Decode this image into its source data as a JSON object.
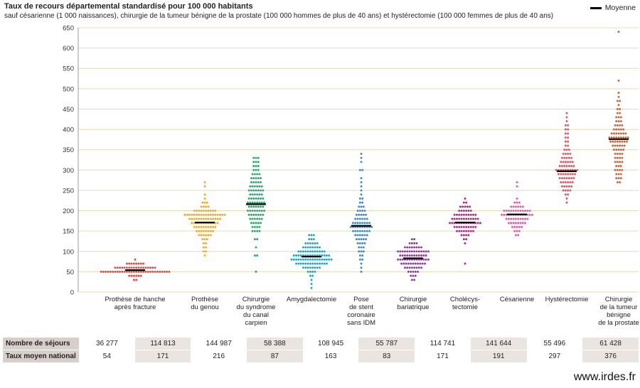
{
  "header": {
    "title": "Taux de recours départemental standardisé pour 100 000 habitants",
    "subtitle": "sauf césarienne (1 000 naissances), chirurgie de la tumeur bénigne de la prostate (100 000 hommes de plus de 40 ans) et hystérectomie (100 000 femmes de plus de 40 ans)"
  },
  "legend": {
    "mean_label": "Moyenne"
  },
  "footer": {
    "source": "www.irdes.fr"
  },
  "chart_data": {
    "type": "scatter",
    "title": "Taux de recours départemental standardisé pour 100 000 habitants",
    "ylim": [
      0,
      650
    ],
    "yticks": [
      0,
      50,
      100,
      150,
      200,
      250,
      300,
      350,
      400,
      450,
      500,
      550,
      600,
      650
    ],
    "grid": true,
    "legend_position": "top-right",
    "categories": [
      {
        "label": [
          "Prothèse de hanche",
          "après fracture"
        ],
        "color": "#e8463f",
        "mean": 54,
        "bins": [
          [
            30,
            2
          ],
          [
            40,
            6
          ],
          [
            50,
            30
          ],
          [
            60,
            18
          ],
          [
            70,
            8
          ],
          [
            80,
            1
          ]
        ]
      },
      {
        "label": [
          "Prothèse",
          "du genou"
        ],
        "color": "#f6a623",
        "mean": 171,
        "bins": [
          [
            90,
            1
          ],
          [
            100,
            2
          ],
          [
            110,
            2
          ],
          [
            120,
            2
          ],
          [
            130,
            3
          ],
          [
            140,
            6
          ],
          [
            150,
            8
          ],
          [
            160,
            10
          ],
          [
            170,
            12
          ],
          [
            180,
            14
          ],
          [
            190,
            18
          ],
          [
            200,
            10
          ],
          [
            210,
            4
          ],
          [
            220,
            3
          ],
          [
            230,
            1
          ],
          [
            240,
            1
          ],
          [
            260,
            1
          ],
          [
            270,
            1
          ]
        ]
      },
      {
        "label": [
          "Chirurgie",
          "du syndrome",
          "du canal",
          "carpien"
        ],
        "color": "#2aa76a",
        "mean": 216,
        "bins": [
          [
            50,
            1
          ],
          [
            90,
            2
          ],
          [
            110,
            1
          ],
          [
            130,
            2
          ],
          [
            150,
            4
          ],
          [
            160,
            4
          ],
          [
            170,
            5
          ],
          [
            180,
            6
          ],
          [
            190,
            7
          ],
          [
            200,
            8
          ],
          [
            210,
            7
          ],
          [
            220,
            8
          ],
          [
            230,
            7
          ],
          [
            240,
            6
          ],
          [
            250,
            7
          ],
          [
            260,
            6
          ],
          [
            270,
            5
          ],
          [
            280,
            5
          ],
          [
            290,
            4
          ],
          [
            300,
            3
          ],
          [
            310,
            3
          ],
          [
            320,
            3
          ],
          [
            330,
            3
          ]
        ]
      },
      {
        "label": [
          "Amygdalectomie"
        ],
        "color": "#1aa6c8",
        "mean": 87,
        "bins": [
          [
            10,
            1
          ],
          [
            20,
            1
          ],
          [
            30,
            1
          ],
          [
            40,
            2
          ],
          [
            50,
            4
          ],
          [
            60,
            8
          ],
          [
            70,
            14
          ],
          [
            80,
            18
          ],
          [
            90,
            16
          ],
          [
            100,
            12
          ],
          [
            110,
            8
          ],
          [
            120,
            6
          ],
          [
            130,
            3
          ],
          [
            140,
            3
          ]
        ]
      },
      {
        "label": [
          "Pose",
          "de stent",
          "coronaire",
          "sans IDM"
        ],
        "color": "#3a86d4",
        "mean": 163,
        "bins": [
          [
            50,
            1
          ],
          [
            60,
            1
          ],
          [
            70,
            1
          ],
          [
            80,
            2
          ],
          [
            90,
            2
          ],
          [
            100,
            3
          ],
          [
            110,
            3
          ],
          [
            120,
            4
          ],
          [
            130,
            5
          ],
          [
            140,
            6
          ],
          [
            150,
            8
          ],
          [
            160,
            10
          ],
          [
            170,
            8
          ],
          [
            180,
            6
          ],
          [
            190,
            5
          ],
          [
            200,
            4
          ],
          [
            210,
            3
          ],
          [
            220,
            2
          ],
          [
            230,
            2
          ],
          [
            240,
            1
          ],
          [
            250,
            1
          ],
          [
            260,
            1
          ],
          [
            270,
            1
          ],
          [
            280,
            1
          ],
          [
            300,
            2
          ],
          [
            320,
            1
          ],
          [
            330,
            1
          ],
          [
            340,
            1
          ]
        ]
      },
      {
        "label": [
          "Chirurgie",
          "bariatrique"
        ],
        "color": "#8e3aa0",
        "mean": 83,
        "bins": [
          [
            30,
            2
          ],
          [
            40,
            3
          ],
          [
            50,
            5
          ],
          [
            60,
            8
          ],
          [
            70,
            11
          ],
          [
            80,
            14
          ],
          [
            90,
            12
          ],
          [
            100,
            14
          ],
          [
            110,
            8
          ],
          [
            120,
            4
          ],
          [
            130,
            2
          ]
        ]
      },
      {
        "label": [
          "Cholécys-",
          "tectomie"
        ],
        "color": "#b3297d",
        "mean": 171,
        "bins": [
          [
            70,
            1
          ],
          [
            120,
            1
          ],
          [
            130,
            2
          ],
          [
            140,
            4
          ],
          [
            150,
            8
          ],
          [
            160,
            10
          ],
          [
            170,
            14
          ],
          [
            180,
            12
          ],
          [
            190,
            10
          ],
          [
            200,
            6
          ],
          [
            210,
            5
          ],
          [
            220,
            2
          ],
          [
            230,
            1
          ]
        ]
      },
      {
        "label": [
          "Césarienne"
        ],
        "color": "#e859a3",
        "mean": 191,
        "bins": [
          [
            140,
            2
          ],
          [
            150,
            3
          ],
          [
            160,
            5
          ],
          [
            170,
            8
          ],
          [
            180,
            10
          ],
          [
            190,
            14
          ],
          [
            200,
            12
          ],
          [
            210,
            6
          ],
          [
            220,
            3
          ],
          [
            230,
            1
          ],
          [
            260,
            1
          ],
          [
            270,
            1
          ]
        ]
      },
      {
        "label": [
          "Hystérectomie"
        ],
        "color": "#e0535f",
        "mean": 297,
        "bins": [
          [
            220,
            1
          ],
          [
            230,
            1
          ],
          [
            240,
            2
          ],
          [
            250,
            4
          ],
          [
            260,
            5
          ],
          [
            270,
            6
          ],
          [
            280,
            7
          ],
          [
            290,
            8
          ],
          [
            300,
            10
          ],
          [
            310,
            7
          ],
          [
            320,
            6
          ],
          [
            330,
            5
          ],
          [
            340,
            4
          ],
          [
            350,
            3
          ],
          [
            360,
            2
          ],
          [
            370,
            2
          ],
          [
            380,
            2
          ],
          [
            390,
            2
          ],
          [
            400,
            2
          ],
          [
            410,
            2
          ],
          [
            420,
            1
          ],
          [
            430,
            1
          ],
          [
            440,
            1
          ]
        ]
      },
      {
        "label": [
          "Chirurgie",
          "de la tumeur",
          "bénigne",
          "de la prostate"
        ],
        "color": "#c7643a",
        "mean": 376,
        "bins": [
          [
            270,
            2
          ],
          [
            280,
            3
          ],
          [
            290,
            3
          ],
          [
            300,
            4
          ],
          [
            310,
            3
          ],
          [
            320,
            4
          ],
          [
            330,
            4
          ],
          [
            340,
            4
          ],
          [
            350,
            5
          ],
          [
            360,
            6
          ],
          [
            370,
            8
          ],
          [
            380,
            9
          ],
          [
            390,
            7
          ],
          [
            400,
            5
          ],
          [
            410,
            4
          ],
          [
            420,
            3
          ],
          [
            430,
            3
          ],
          [
            440,
            2
          ],
          [
            450,
            2
          ],
          [
            460,
            1
          ],
          [
            470,
            2
          ],
          [
            480,
            1
          ],
          [
            490,
            1
          ],
          [
            520,
            1
          ],
          [
            640,
            1
          ]
        ]
      }
    ]
  },
  "table": {
    "rows": [
      {
        "label": "Nombre de séjours",
        "values": [
          "36 277",
          "114 813",
          "144 987",
          "58 388",
          "108 945",
          "55 787",
          "114 741",
          "141 644",
          "55 496",
          "61 428"
        ]
      },
      {
        "label": "Taux moyen national",
        "values": [
          "54",
          "171",
          "216",
          "87",
          "163",
          "83",
          "171",
          "191",
          "297",
          "376"
        ]
      }
    ]
  }
}
